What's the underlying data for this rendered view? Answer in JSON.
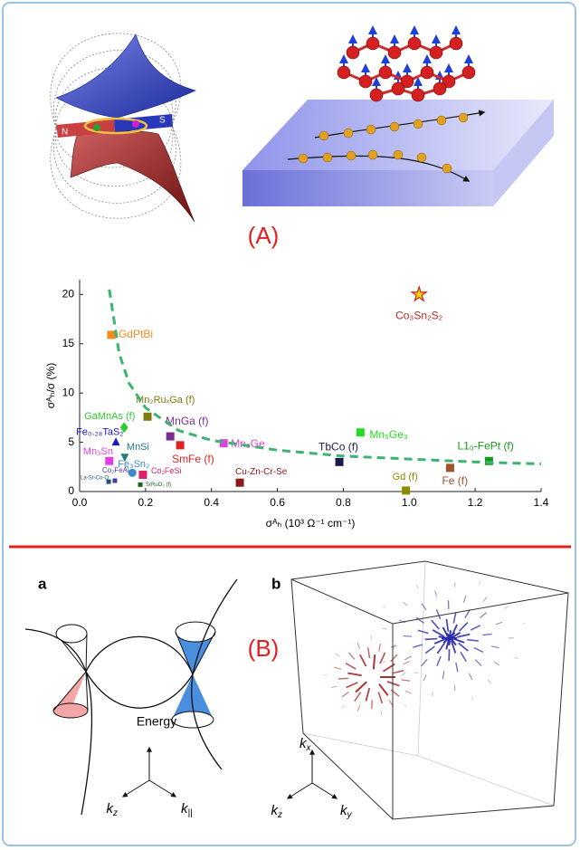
{
  "figure": {
    "panel_A": "(A)",
    "panel_B": "(B)",
    "magnet_n": "N",
    "magnet_s": "S",
    "panel_a": "a",
    "panel_b": "b",
    "energy": "Energy",
    "axes_a": [
      {
        "letter": "k",
        "sub": "z"
      },
      {
        "letter": "k",
        "sub": "||"
      }
    ],
    "axes_b": [
      {
        "letter": "k",
        "sub": "x"
      },
      {
        "letter": "k",
        "sub": "z"
      },
      {
        "letter": "k",
        "sub": "y"
      }
    ]
  },
  "chart_data": {
    "type": "scatter",
    "x_label": "σᴬₕ (10³ Ω⁻¹ cm⁻¹)",
    "y_label": "σᴬₕ/σ (%)",
    "xlim": [
      0,
      1.4
    ],
    "ylim": [
      0,
      21.5
    ],
    "xticks": [
      {
        "value": 0,
        "label": "0.0"
      },
      0.2,
      0.4,
      0.6,
      0.8,
      {
        "value": 1,
        "label": "1.0"
      },
      1.2,
      1.4
    ],
    "yticks": [
      0,
      5,
      10,
      15,
      20
    ],
    "series": [
      {
        "name": "Co₃Sn₂S₂",
        "color": "#ffd400",
        "edgecolor": "#c0281e",
        "marker": "star",
        "x": [
          1.03
        ],
        "values": [
          20
        ]
      },
      {
        "name": "GdPtBi",
        "color": "#f28c1f",
        "marker": "square",
        "x": [
          0.096
        ],
        "values": [
          15.9
        ]
      },
      {
        "name": "Mn₂RuₓGa (f)",
        "color": "#7f7a10",
        "marker": "square",
        "x": [
          0.206
        ],
        "values": [
          7.6
        ]
      },
      {
        "name": "GaMnAs (f)",
        "color": "#2ecc2e",
        "marker": "diamond",
        "x": [
          0.135
        ],
        "values": [
          6.5
        ]
      },
      {
        "name": "MnGa (f)",
        "color": "#7b2c8f",
        "marker": "square",
        "x": [
          0.275
        ],
        "values": [
          5.6
        ]
      },
      {
        "name": "Mn₅Ge₃",
        "color": "#22dd22",
        "marker": "square",
        "x": [
          0.852
        ],
        "values": [
          6
        ]
      },
      {
        "name": "Fe₀.₂₈TaS₂",
        "color": "#1a1acc",
        "marker": "triangle",
        "x": [
          0.11
        ],
        "values": [
          5
        ]
      },
      {
        "name": "Mn₃Ge",
        "color": "#e040e0",
        "marker": "square",
        "x": [
          0.437
        ],
        "values": [
          4.9
        ]
      },
      {
        "name": "SmFe (f)",
        "color": "#dd2222",
        "marker": "square",
        "x": [
          0.305
        ],
        "values": [
          4.7
        ]
      },
      {
        "name": "MnSi",
        "color": "#208080",
        "marker": "triangle-down",
        "x": [
          0.137
        ],
        "values": [
          3.5
        ]
      },
      {
        "name": "TbCo (f)",
        "color": "#1a1a4a",
        "marker": "square",
        "x": [
          0.788
        ],
        "values": [
          3
        ]
      },
      {
        "name": "L1₀-FePt (f)",
        "color": "#1a9a1a",
        "marker": "square",
        "x": [
          1.242
        ],
        "values": [
          3.1
        ]
      },
      {
        "name": "Mn₃Sn",
        "color": "#e040e0",
        "marker": "square",
        "x": [
          0.09
        ],
        "values": [
          3.1
        ]
      },
      {
        "name": "Fe₃Sn₂",
        "color": "#3a8acc",
        "marker": "circle",
        "x": [
          0.16
        ],
        "values": [
          1.9
        ]
      },
      {
        "name": "Co₂FeAl",
        "color": "#4a3ab0",
        "marker": "square",
        "x": [
          0.107
        ],
        "values": [
          1.1
        ]
      },
      {
        "name": "Co₂FeSi",
        "color": "#e0206a",
        "marker": "square",
        "x": [
          0.192
        ],
        "values": [
          1.7
        ]
      },
      {
        "name": "La-Sr-Co-O",
        "color": "#205080",
        "marker": "square",
        "x": [
          0.088
        ],
        "values": [
          1
        ]
      },
      {
        "name": "SrRuO₃ (f)",
        "color": "#206020",
        "marker": "square",
        "x": [
          0.184
        ],
        "values": [
          0.7
        ]
      },
      {
        "name": "Cu-Zn-Cr-Se",
        "color": "#8b1a1a",
        "marker": "square",
        "x": [
          0.486
        ],
        "values": [
          0.9
        ]
      },
      {
        "name": "Gd (f)",
        "color": "#8b8b00",
        "marker": "square",
        "x": [
          0.99
        ],
        "values": [
          0.1
        ]
      },
      {
        "name": "Fe (f)",
        "color": "#a0522d",
        "marker": "square",
        "x": [
          1.124
        ],
        "values": [
          2.4
        ]
      },
      {
        "color": "#3cb371",
        "style": "dashed",
        "x": [
          0.09,
          0.12,
          0.15,
          0.2,
          0.3,
          0.4,
          0.6,
          0.8,
          1.0,
          1.2,
          1.4
        ],
        "values": [
          20.5,
          14,
          11,
          8.5,
          6.2,
          5.2,
          4.2,
          3.6,
          3.3,
          3.0,
          2.8
        ]
      }
    ]
  }
}
